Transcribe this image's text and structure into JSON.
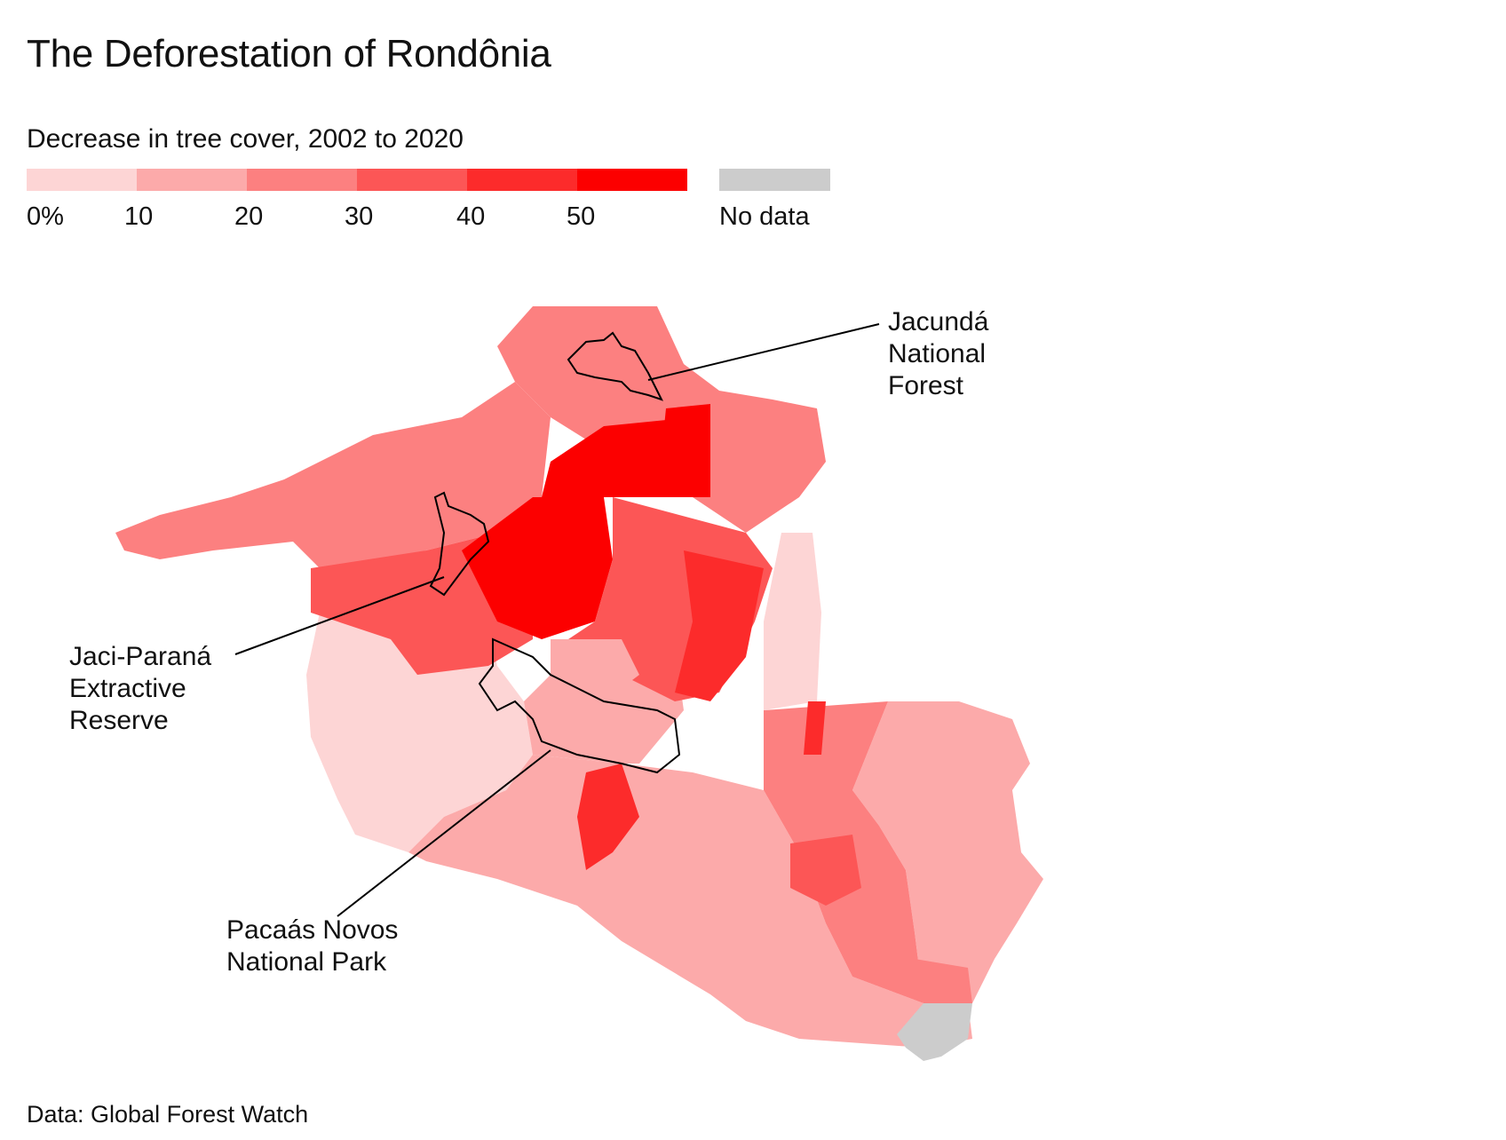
{
  "title": "The Deforestation of Rondônia",
  "legend": {
    "title": "Decrease in tree cover, 2002 to 2020",
    "ticks": [
      "0%",
      "10",
      "20",
      "30",
      "40",
      "50"
    ],
    "colors": [
      "#fdd5d5",
      "#fcaaaa",
      "#fc8080",
      "#fc5656",
      "#fc2b2b",
      "#fc0000"
    ],
    "no_data_label": "No data",
    "no_data_color": "#cccccc"
  },
  "callouts": {
    "jacunda": "Jacundá\nNational\nForest",
    "jaci_parana": "Jaci-Paraná\nExtractive\nReserve",
    "pacaas_novos": "Pacaás Novos\nNational Park"
  },
  "source": "Data: Global Forest Watch"
}
